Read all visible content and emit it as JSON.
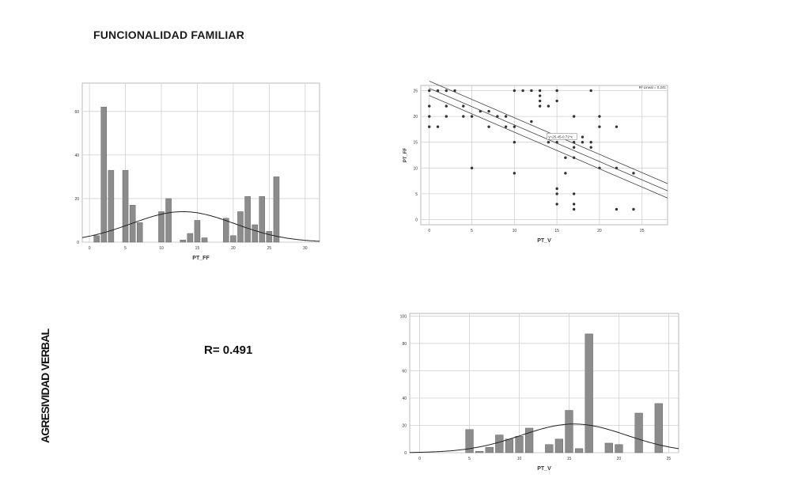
{
  "page": {
    "title": "FUNCIONALIDAD FAMILIAR",
    "side_label": "AGRESIVIDAD VERBAL",
    "r_value": "R= 0.491"
  },
  "chart_data": [
    {
      "type": "bar",
      "subtype": "histogram",
      "xlabel": "PT_FF",
      "ylabel": "",
      "xlim": [
        -1,
        32
      ],
      "ylim": [
        0,
        73
      ],
      "xticks": [
        0,
        5,
        10,
        15,
        20,
        25,
        30
      ],
      "yticks": [
        0,
        20,
        40,
        60
      ],
      "grid": true,
      "bar_color": "#8c8c8c",
      "x": [
        1,
        2,
        3,
        5,
        6,
        7,
        10,
        11,
        13,
        14,
        15,
        16,
        17,
        19,
        20,
        21,
        22,
        23,
        24,
        25,
        26
      ],
      "values": [
        3,
        62,
        33,
        33,
        17,
        9,
        14,
        20,
        1,
        4,
        10,
        2,
        0,
        11,
        3,
        14,
        21,
        8,
        21,
        5,
        30
      ],
      "normal_curve": {
        "mean": 13,
        "sd": 7.2,
        "peak": 14
      }
    },
    {
      "type": "scatter",
      "xlabel": "PT_V",
      "ylabel": "PT_FF",
      "xlim": [
        -1,
        28
      ],
      "ylim": [
        -1,
        26
      ],
      "xticks": [
        0,
        5,
        10,
        15,
        20,
        25
      ],
      "yticks": [
        0,
        5,
        10,
        15,
        20,
        25
      ],
      "grid": true,
      "fit_label": "R² Lineal = 0.241",
      "fit_equation": "y=25.45-0.71*x",
      "fit_line": {
        "intercept": 25.45,
        "slope": -0.71
      },
      "points": [
        [
          0,
          25
        ],
        [
          0,
          22
        ],
        [
          0,
          20
        ],
        [
          0,
          18
        ],
        [
          1,
          25
        ],
        [
          1,
          18
        ],
        [
          2,
          25
        ],
        [
          2,
          22
        ],
        [
          2,
          20
        ],
        [
          3,
          25
        ],
        [
          4,
          22
        ],
        [
          4,
          20
        ],
        [
          5,
          20
        ],
        [
          5,
          10
        ],
        [
          6,
          21
        ],
        [
          7,
          21
        ],
        [
          7,
          18
        ],
        [
          8,
          20
        ],
        [
          9,
          20
        ],
        [
          9,
          18
        ],
        [
          10,
          25
        ],
        [
          10,
          18
        ],
        [
          10,
          15
        ],
        [
          10,
          9
        ],
        [
          11,
          25
        ],
        [
          12,
          25
        ],
        [
          12,
          19
        ],
        [
          13,
          24
        ],
        [
          13,
          23
        ],
        [
          13,
          22
        ],
        [
          13,
          25
        ],
        [
          14,
          22
        ],
        [
          14,
          15
        ],
        [
          15,
          25
        ],
        [
          15,
          23
        ],
        [
          15,
          15
        ],
        [
          15,
          6
        ],
        [
          15,
          5
        ],
        [
          15,
          3
        ],
        [
          16,
          12
        ],
        [
          16,
          9
        ],
        [
          17,
          20
        ],
        [
          17,
          15
        ],
        [
          17,
          14
        ],
        [
          17,
          12
        ],
        [
          17,
          5
        ],
        [
          17,
          3
        ],
        [
          17,
          2
        ],
        [
          18,
          15
        ],
        [
          18,
          16
        ],
        [
          19,
          25
        ],
        [
          19,
          15
        ],
        [
          19,
          14
        ],
        [
          20,
          20
        ],
        [
          20,
          18
        ],
        [
          20,
          10
        ],
        [
          22,
          18
        ],
        [
          22,
          10
        ],
        [
          22,
          2
        ],
        [
          24,
          9
        ],
        [
          24,
          2
        ]
      ]
    },
    {
      "type": "bar",
      "subtype": "histogram",
      "xlabel": "PT_V",
      "ylabel": "",
      "xlim": [
        -1,
        26
      ],
      "ylim": [
        0,
        102
      ],
      "xticks": [
        0,
        5,
        10,
        15,
        20,
        25
      ],
      "yticks": [
        0,
        20,
        40,
        60,
        80,
        100
      ],
      "grid": true,
      "bar_color": "#8c8c8c",
      "x": [
        5,
        6,
        7,
        8,
        9,
        10,
        11,
        13,
        14,
        15,
        16,
        17,
        19,
        20,
        22,
        24
      ],
      "values": [
        17,
        1,
        4,
        13,
        10,
        12,
        18,
        6,
        10,
        31,
        3,
        87,
        7,
        6,
        29,
        36
      ],
      "normal_curve": {
        "mean": 15.5,
        "sd": 5.3,
        "peak": 21
      }
    }
  ]
}
